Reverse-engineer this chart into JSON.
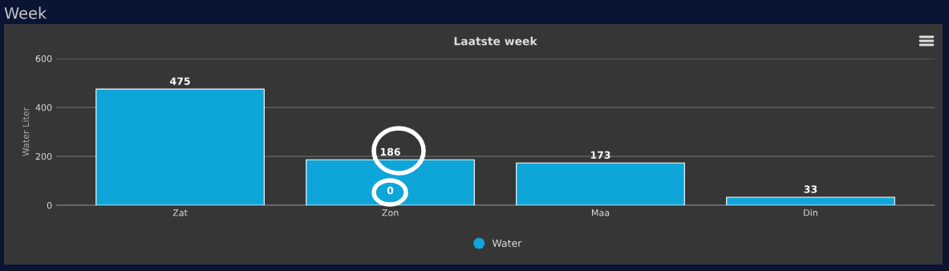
{
  "chart_data": {
    "type": "bar",
    "title": "Week",
    "subtitle": "Laatste week",
    "ylabel": "Water Liter",
    "categories": [
      "Zat",
      "Zon",
      "Maa",
      "Din"
    ],
    "series": [
      {
        "name": "Water",
        "color": "#0ea5d8",
        "values": [
          475,
          186,
          173,
          33
        ]
      }
    ],
    "annotations": [
      {
        "text": "0",
        "x": "Zon",
        "y": 0
      }
    ],
    "ylim": [
      0,
      600
    ],
    "yticks": [
      0,
      200,
      400,
      600
    ],
    "grid": "y",
    "legend": "bottom",
    "data_labels": true
  }
}
